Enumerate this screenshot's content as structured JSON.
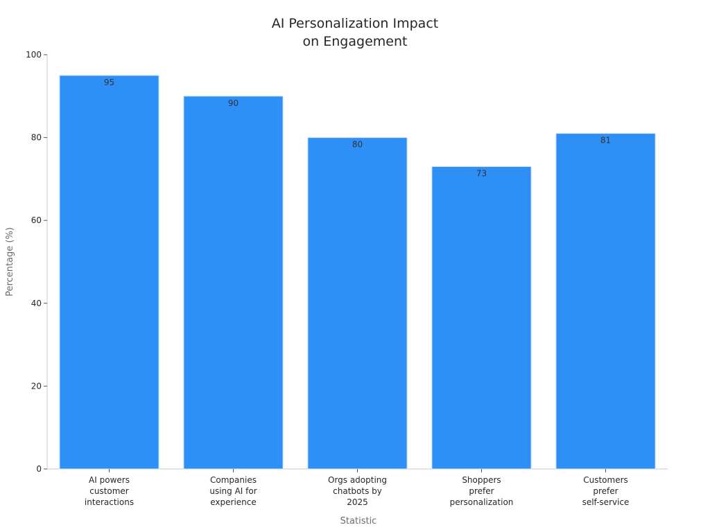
{
  "chart_data": {
    "type": "bar",
    "title": [
      "AI Personalization Impact",
      "on Engagement"
    ],
    "xlabel": "Statistic",
    "ylabel": "Percentage (%)",
    "ylim": [
      0,
      100
    ],
    "yticks": [
      0,
      20,
      40,
      60,
      80,
      100
    ],
    "categories": [
      [
        "AI powers",
        "customer",
        "interactions"
      ],
      [
        "Companies",
        "using AI for",
        "experience"
      ],
      [
        "Orgs adopting",
        "chatbots by",
        "2025"
      ],
      [
        "Shoppers",
        "prefer",
        "personalization"
      ],
      [
        "Customers",
        "prefer",
        "self-service"
      ]
    ],
    "values": [
      95,
      90,
      80,
      73,
      81
    ],
    "data_labels": [
      "95",
      "90",
      "80",
      "73",
      "81"
    ],
    "bar_color": "#2e90f7",
    "grid": false,
    "legend": "none"
  }
}
